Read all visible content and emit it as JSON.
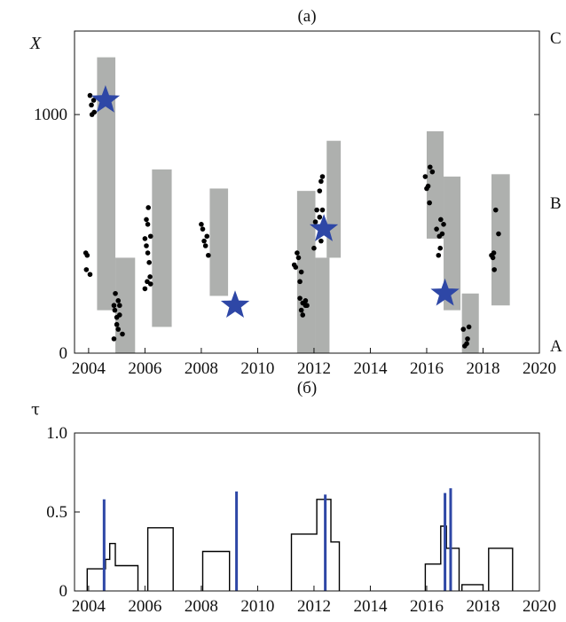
{
  "chart_data": [
    {
      "type": "scatter",
      "title": "(a)",
      "ylabel": "X",
      "xlim": [
        2003.5,
        2020
      ],
      "ylim": [
        0,
        1350
      ],
      "x_ticks": [
        "2004",
        "2006",
        "2008",
        "2010",
        "2012",
        "2014",
        "2016",
        "2018",
        "2020"
      ],
      "y_ticks": [
        "0",
        "1000"
      ],
      "right_axis_labels": [
        "A",
        "B",
        "C"
      ],
      "grey_bars": [
        {
          "x0": 2004.3,
          "x1": 2004.95,
          "y0": 180,
          "y1": 1240
        },
        {
          "x0": 2004.95,
          "x1": 2005.65,
          "y0": 0,
          "y1": 400
        },
        {
          "x0": 2006.25,
          "x1": 2006.95,
          "y0": 110,
          "y1": 770
        },
        {
          "x0": 2008.3,
          "x1": 2008.95,
          "y0": 240,
          "y1": 690
        },
        {
          "x0": 2011.4,
          "x1": 2012.05,
          "y0": 0,
          "y1": 680
        },
        {
          "x0": 2012.05,
          "x1": 2012.55,
          "y0": 0,
          "y1": 400
        },
        {
          "x0": 2012.45,
          "x1": 2012.95,
          "y0": 400,
          "y1": 890
        },
        {
          "x0": 2016.0,
          "x1": 2016.6,
          "y0": 480,
          "y1": 930
        },
        {
          "x0": 2016.6,
          "x1": 2017.2,
          "y0": 180,
          "y1": 740
        },
        {
          "x0": 2017.25,
          "x1": 2017.85,
          "y0": 0,
          "y1": 250
        },
        {
          "x0": 2018.3,
          "x1": 2018.95,
          "y0": 200,
          "y1": 750
        }
      ],
      "points": [
        [
          2003.9,
          420
        ],
        [
          2003.95,
          410
        ],
        [
          2003.92,
          350
        ],
        [
          2004.05,
          330
        ],
        [
          2004.05,
          1080
        ],
        [
          2004.1,
          1040
        ],
        [
          2004.12,
          1000
        ],
        [
          2004.2,
          1010
        ],
        [
          2004.18,
          1060
        ],
        [
          2004.95,
          250
        ],
        [
          2004.9,
          200
        ],
        [
          2004.93,
          180
        ],
        [
          2005.0,
          150
        ],
        [
          2005.05,
          220
        ],
        [
          2005.1,
          160
        ],
        [
          2005.0,
          120
        ],
        [
          2005.05,
          100
        ],
        [
          2004.9,
          60
        ],
        [
          2005.2,
          80
        ],
        [
          2005.1,
          200
        ],
        [
          2006.0,
          480
        ],
        [
          2006.05,
          560
        ],
        [
          2006.1,
          540
        ],
        [
          2006.12,
          610
        ],
        [
          2006.05,
          450
        ],
        [
          2006.1,
          420
        ],
        [
          2006.2,
          490
        ],
        [
          2006.15,
          380
        ],
        [
          2006.08,
          300
        ],
        [
          2006.18,
          320
        ],
        [
          2006.2,
          290
        ],
        [
          2006.0,
          270
        ],
        [
          2008.0,
          540
        ],
        [
          2008.05,
          520
        ],
        [
          2008.1,
          470
        ],
        [
          2008.2,
          490
        ],
        [
          2008.15,
          450
        ],
        [
          2008.25,
          410
        ],
        [
          2011.3,
          370
        ],
        [
          2011.35,
          360
        ],
        [
          2011.4,
          420
        ],
        [
          2011.45,
          400
        ],
        [
          2011.5,
          300
        ],
        [
          2011.55,
          340
        ],
        [
          2011.5,
          230
        ],
        [
          2011.6,
          210
        ],
        [
          2011.7,
          220
        ],
        [
          2011.75,
          200
        ],
        [
          2011.55,
          180
        ],
        [
          2011.6,
          160
        ],
        [
          2011.7,
          200
        ],
        [
          2012.0,
          440
        ],
        [
          2012.05,
          550
        ],
        [
          2012.1,
          600
        ],
        [
          2012.2,
          680
        ],
        [
          2012.25,
          720
        ],
        [
          2012.3,
          740
        ],
        [
          2012.3,
          600
        ],
        [
          2012.2,
          570
        ],
        [
          2012.35,
          540
        ],
        [
          2012.25,
          470
        ],
        [
          2015.95,
          740
        ],
        [
          2016.0,
          690
        ],
        [
          2016.05,
          700
        ],
        [
          2016.1,
          630
        ],
        [
          2016.12,
          780
        ],
        [
          2016.2,
          760
        ],
        [
          2016.35,
          520
        ],
        [
          2016.45,
          490
        ],
        [
          2016.5,
          560
        ],
        [
          2016.55,
          500
        ],
        [
          2016.48,
          440
        ],
        [
          2016.42,
          410
        ],
        [
          2016.6,
          540
        ],
        [
          2017.3,
          100
        ],
        [
          2017.35,
          30
        ],
        [
          2017.42,
          40
        ],
        [
          2017.45,
          60
        ],
        [
          2017.5,
          110
        ],
        [
          2018.3,
          410
        ],
        [
          2018.35,
          400
        ],
        [
          2018.4,
          350
        ],
        [
          2018.45,
          600
        ],
        [
          2018.55,
          500
        ],
        [
          2018.38,
          420
        ]
      ],
      "stars": [
        {
          "x": 2004.6,
          "y": 1060
        },
        {
          "x": 2009.2,
          "y": 200
        },
        {
          "x": 2012.35,
          "y": 520
        },
        {
          "x": 2016.65,
          "y": 250
        }
      ],
      "colors": {
        "bars": "#aeb0ae",
        "points": "#000000",
        "stars": "#2e47a6"
      }
    },
    {
      "type": "line",
      "title": "(б)",
      "ylabel": "τ",
      "xlim": [
        2003.5,
        2020
      ],
      "ylim": [
        0,
        1.0
      ],
      "x_ticks": [
        "2004",
        "2006",
        "2008",
        "2010",
        "2012",
        "2014",
        "2016",
        "2018",
        "2020"
      ],
      "y_ticks": [
        "0",
        "0.5",
        "1.0"
      ],
      "series": [
        {
          "values": [
            [
              2003.95,
              0
            ],
            [
              2003.95,
              0.14
            ],
            [
              2004.6,
              0.14
            ],
            [
              2004.6,
              0.2
            ],
            [
              2004.75,
              0.2
            ],
            [
              2004.75,
              0.3
            ],
            [
              2004.95,
              0.3
            ],
            [
              2004.95,
              0.16
            ],
            [
              2005.75,
              0.16
            ],
            [
              2005.75,
              0
            ]
          ]
        },
        {
          "values": [
            [
              2006.1,
              0
            ],
            [
              2006.1,
              0.4
            ],
            [
              2007.0,
              0.4
            ],
            [
              2007.0,
              0
            ]
          ]
        },
        {
          "values": [
            [
              2008.05,
              0
            ],
            [
              2008.05,
              0.25
            ],
            [
              2009.0,
              0.25
            ],
            [
              2009.0,
              0
            ]
          ]
        },
        {
          "values": [
            [
              2011.2,
              0
            ],
            [
              2011.2,
              0.36
            ],
            [
              2012.1,
              0.36
            ],
            [
              2012.1,
              0.58
            ],
            [
              2012.6,
              0.58
            ],
            [
              2012.6,
              0.31
            ],
            [
              2012.9,
              0.31
            ],
            [
              2012.9,
              0
            ]
          ]
        },
        {
          "values": [
            [
              2015.95,
              0
            ],
            [
              2015.95,
              0.17
            ],
            [
              2016.5,
              0.17
            ],
            [
              2016.5,
              0.41
            ],
            [
              2016.7,
              0.41
            ],
            [
              2016.7,
              0.27
            ],
            [
              2017.15,
              0.27
            ],
            [
              2017.15,
              0
            ]
          ]
        },
        {
          "values": [
            [
              2017.25,
              0
            ],
            [
              2017.25,
              0.04
            ],
            [
              2018.0,
              0.04
            ],
            [
              2018.0,
              0
            ]
          ]
        },
        {
          "values": [
            [
              2018.2,
              0
            ],
            [
              2018.2,
              0.27
            ],
            [
              2019.05,
              0.27
            ],
            [
              2019.05,
              0
            ]
          ]
        }
      ],
      "vlines": [
        {
          "x": 2004.55,
          "y": 0.58
        },
        {
          "x": 2009.25,
          "y": 0.63
        },
        {
          "x": 2012.4,
          "y": 0.61
        },
        {
          "x": 2016.65,
          "y": 0.62
        },
        {
          "x": 2016.85,
          "y": 0.65
        }
      ],
      "colors": {
        "steps": "#000000",
        "vlines": "#2e47a6"
      }
    }
  ]
}
